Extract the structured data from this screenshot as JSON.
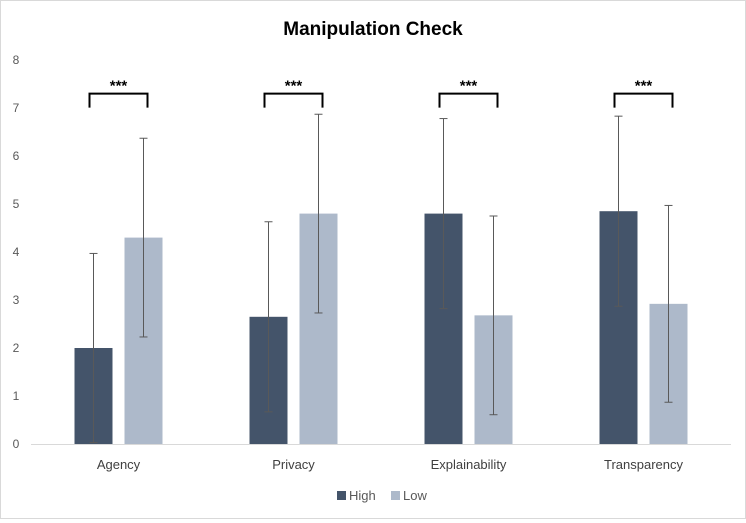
{
  "chart_data": {
    "type": "bar",
    "title": "Manipulation Check",
    "categories": [
      "Agency",
      "Privacy",
      "Explainability",
      "Transparency"
    ],
    "series": [
      {
        "name": "High",
        "color": "#44546a",
        "values": [
          2.0,
          2.65,
          4.8,
          4.85
        ],
        "errors": [
          1.97,
          1.98,
          1.98,
          1.98
        ]
      },
      {
        "name": "Low",
        "color": "#adb9ca",
        "values": [
          4.3,
          4.8,
          2.68,
          2.92
        ],
        "errors": [
          2.07,
          2.07,
          2.07,
          2.05
        ]
      }
    ],
    "ylim": [
      0,
      8
    ],
    "yticks": [
      0,
      1,
      2,
      3,
      4,
      5,
      6,
      7,
      8
    ],
    "significance": [
      "***",
      "***",
      "***",
      "***"
    ],
    "legend_position": "bottom",
    "xlabel": "",
    "ylabel": ""
  }
}
